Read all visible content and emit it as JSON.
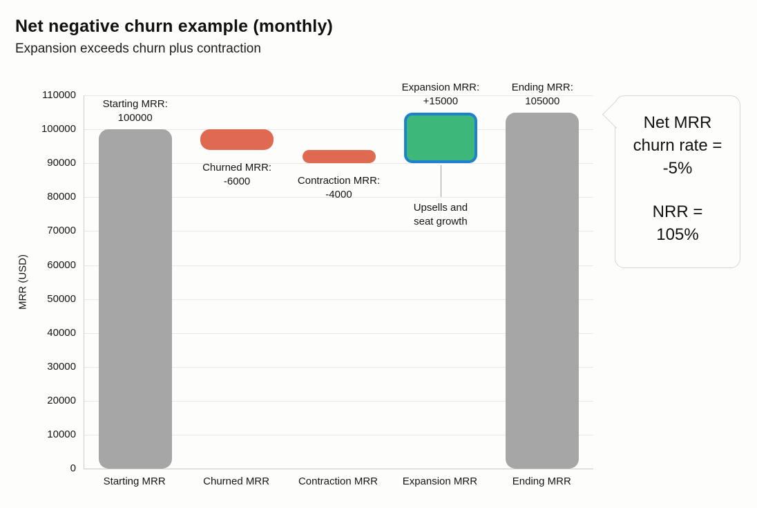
{
  "chart_data": {
    "type": "bar",
    "subtype": "waterfall",
    "title": "Net negative churn example (monthly)",
    "subtitle": "Expansion exceeds churn plus contraction",
    "ylabel": "MRR (USD)",
    "ylim": [
      0,
      110000
    ],
    "ytick_step": 10000,
    "grid": true,
    "legend": false,
    "categories": [
      "Starting MRR",
      "Churned MRR",
      "Contraction MRR",
      "Expansion MRR",
      "Ending MRR"
    ],
    "bars": [
      {
        "category": "Starting MRR",
        "base": 0,
        "end": 100000,
        "value": 100000,
        "label_line1": "Starting MRR:",
        "label_line2": "100000",
        "label_side": "above",
        "fill": "#a6a6a6",
        "stroke": null
      },
      {
        "category": "Churned MRR",
        "base": 94000,
        "end": 100000,
        "value": -6000,
        "label_line1": "Churned MRR:",
        "label_line2": "-6000",
        "label_side": "below",
        "fill": "#df6a51",
        "stroke": null
      },
      {
        "category": "Contraction MRR",
        "base": 90000,
        "end": 94000,
        "value": -4000,
        "label_line1": "Contraction MRR:",
        "label_line2": "-4000",
        "label_side": "below",
        "fill": "#df6a51",
        "stroke": null
      },
      {
        "category": "Expansion MRR",
        "base": 90000,
        "end": 105000,
        "value": 15000,
        "label_line1": "Expansion MRR:",
        "label_line2": "+15000",
        "label_side": "above",
        "fill": "#3eb77b",
        "stroke": "#1f80ce"
      },
      {
        "category": "Ending MRR",
        "base": 0,
        "end": 105000,
        "value": 105000,
        "label_line1": "Ending MRR:",
        "label_line2": "105000",
        "label_side": "above",
        "fill": "#a6a6a6",
        "stroke": null
      }
    ],
    "annotation": {
      "line1": "Upsells and",
      "line2": "seat growth",
      "target_category": "Expansion MRR"
    },
    "colors": {
      "grid": "#eae8e5",
      "axis": "#c9c7c4",
      "annotation_line": "#9a9a9a",
      "text": "#141414"
    }
  },
  "callout": {
    "line1": "Net MRR",
    "line2": "churn rate =",
    "line3": "-5%",
    "line4": "NRR =",
    "line5": "105%"
  }
}
